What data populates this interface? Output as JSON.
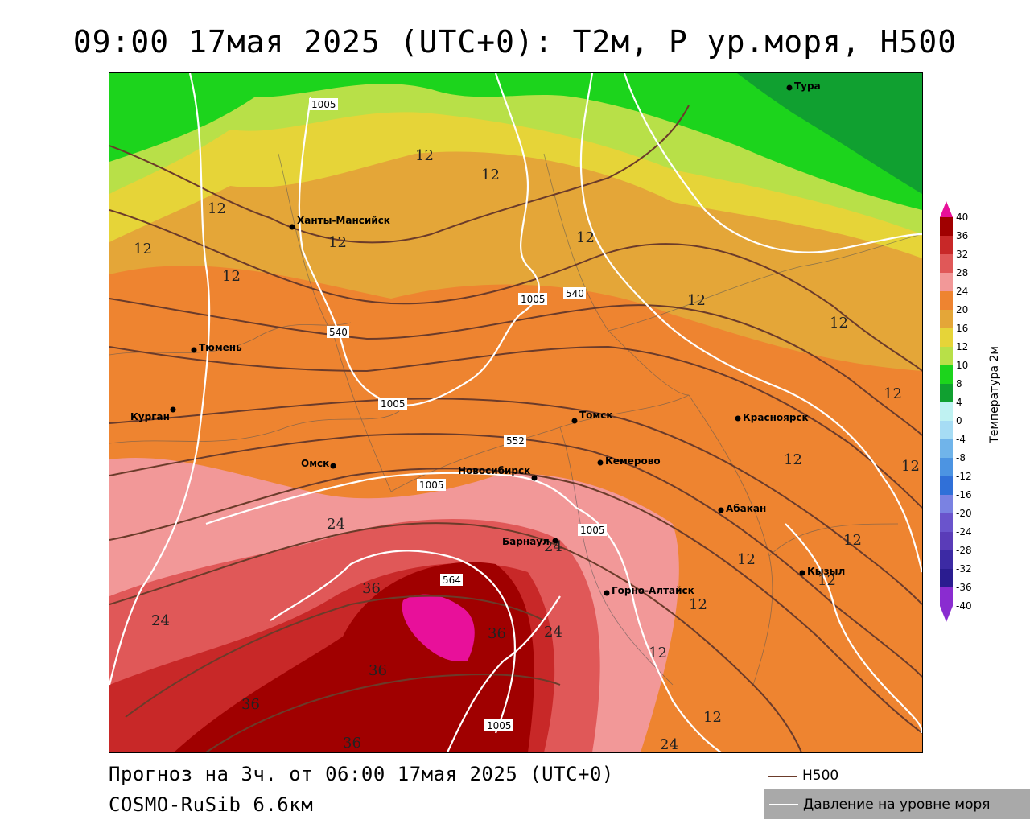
{
  "title": "09:00 17мая 2025 (UTC+0): T2м, P ур.моря, H500",
  "forecast": "Прогноз на 3ч. от 06:00 17мая 2025 (UTC+0)",
  "model": "COSMO-RuSib 6.6км",
  "legend": {
    "title": "Температура 2м",
    "h500_label": "H500",
    "pressure_label": "Давление на уровне моря",
    "scale": [
      {
        "value": "40",
        "color": "#e8109a"
      },
      {
        "value": "36",
        "color": "#a00000"
      },
      {
        "value": "32",
        "color": "#c82828"
      },
      {
        "value": "28",
        "color": "#e05858"
      },
      {
        "value": "24",
        "color": "#f29898"
      },
      {
        "value": "20",
        "color": "#ee8430"
      },
      {
        "value": "16",
        "color": "#e4a638"
      },
      {
        "value": "12",
        "color": "#e6d438"
      },
      {
        "value": "10",
        "color": "#b8e048"
      },
      {
        "value": "8",
        "color": "#1cd41c"
      },
      {
        "value": "4",
        "color": "#10a030"
      },
      {
        "value": "0",
        "color": "#bff2f2"
      },
      {
        "value": "-4",
        "color": "#a6dcf4"
      },
      {
        "value": "-8",
        "color": "#70b4ea"
      },
      {
        "value": "-12",
        "color": "#4c94e2"
      },
      {
        "value": "-16",
        "color": "#3070d8"
      },
      {
        "value": "-20",
        "color": "#7a82e2"
      },
      {
        "value": "-24",
        "color": "#6a54cc"
      },
      {
        "value": "-28",
        "color": "#5a3cb8"
      },
      {
        "value": "-32",
        "color": "#3c2aa4"
      },
      {
        "value": "-36",
        "color": "#2a1c90"
      },
      {
        "value": "-40",
        "color": "#8a2cd0"
      }
    ]
  },
  "cities": [
    {
      "name": "Тура"
    },
    {
      "name": "Ханты-Мансийск"
    },
    {
      "name": "Тюмень"
    },
    {
      "name": "Курган"
    },
    {
      "name": "Омск"
    },
    {
      "name": "Новосибирск"
    },
    {
      "name": "Томск"
    },
    {
      "name": "Кемерово"
    },
    {
      "name": "Красноярск"
    },
    {
      "name": "Абакан"
    },
    {
      "name": "Барнаул"
    },
    {
      "name": "Горно-Алтайск"
    },
    {
      "name": "Кызыл"
    }
  ],
  "isobar_labels": [
    "1005",
    "1005",
    "1005",
    "1005",
    "1005",
    "1005"
  ],
  "h500_labels": [
    "540",
    "540",
    "552",
    "564"
  ],
  "isotherm_labels": [
    "12",
    "12",
    "12",
    "12",
    "12",
    "12",
    "12",
    "12",
    "12",
    "12",
    "12",
    "12",
    "12",
    "12",
    "12",
    "12",
    "12",
    "12",
    "24",
    "24",
    "24",
    "24",
    "24",
    "36",
    "36",
    "36",
    "36",
    "36"
  ]
}
